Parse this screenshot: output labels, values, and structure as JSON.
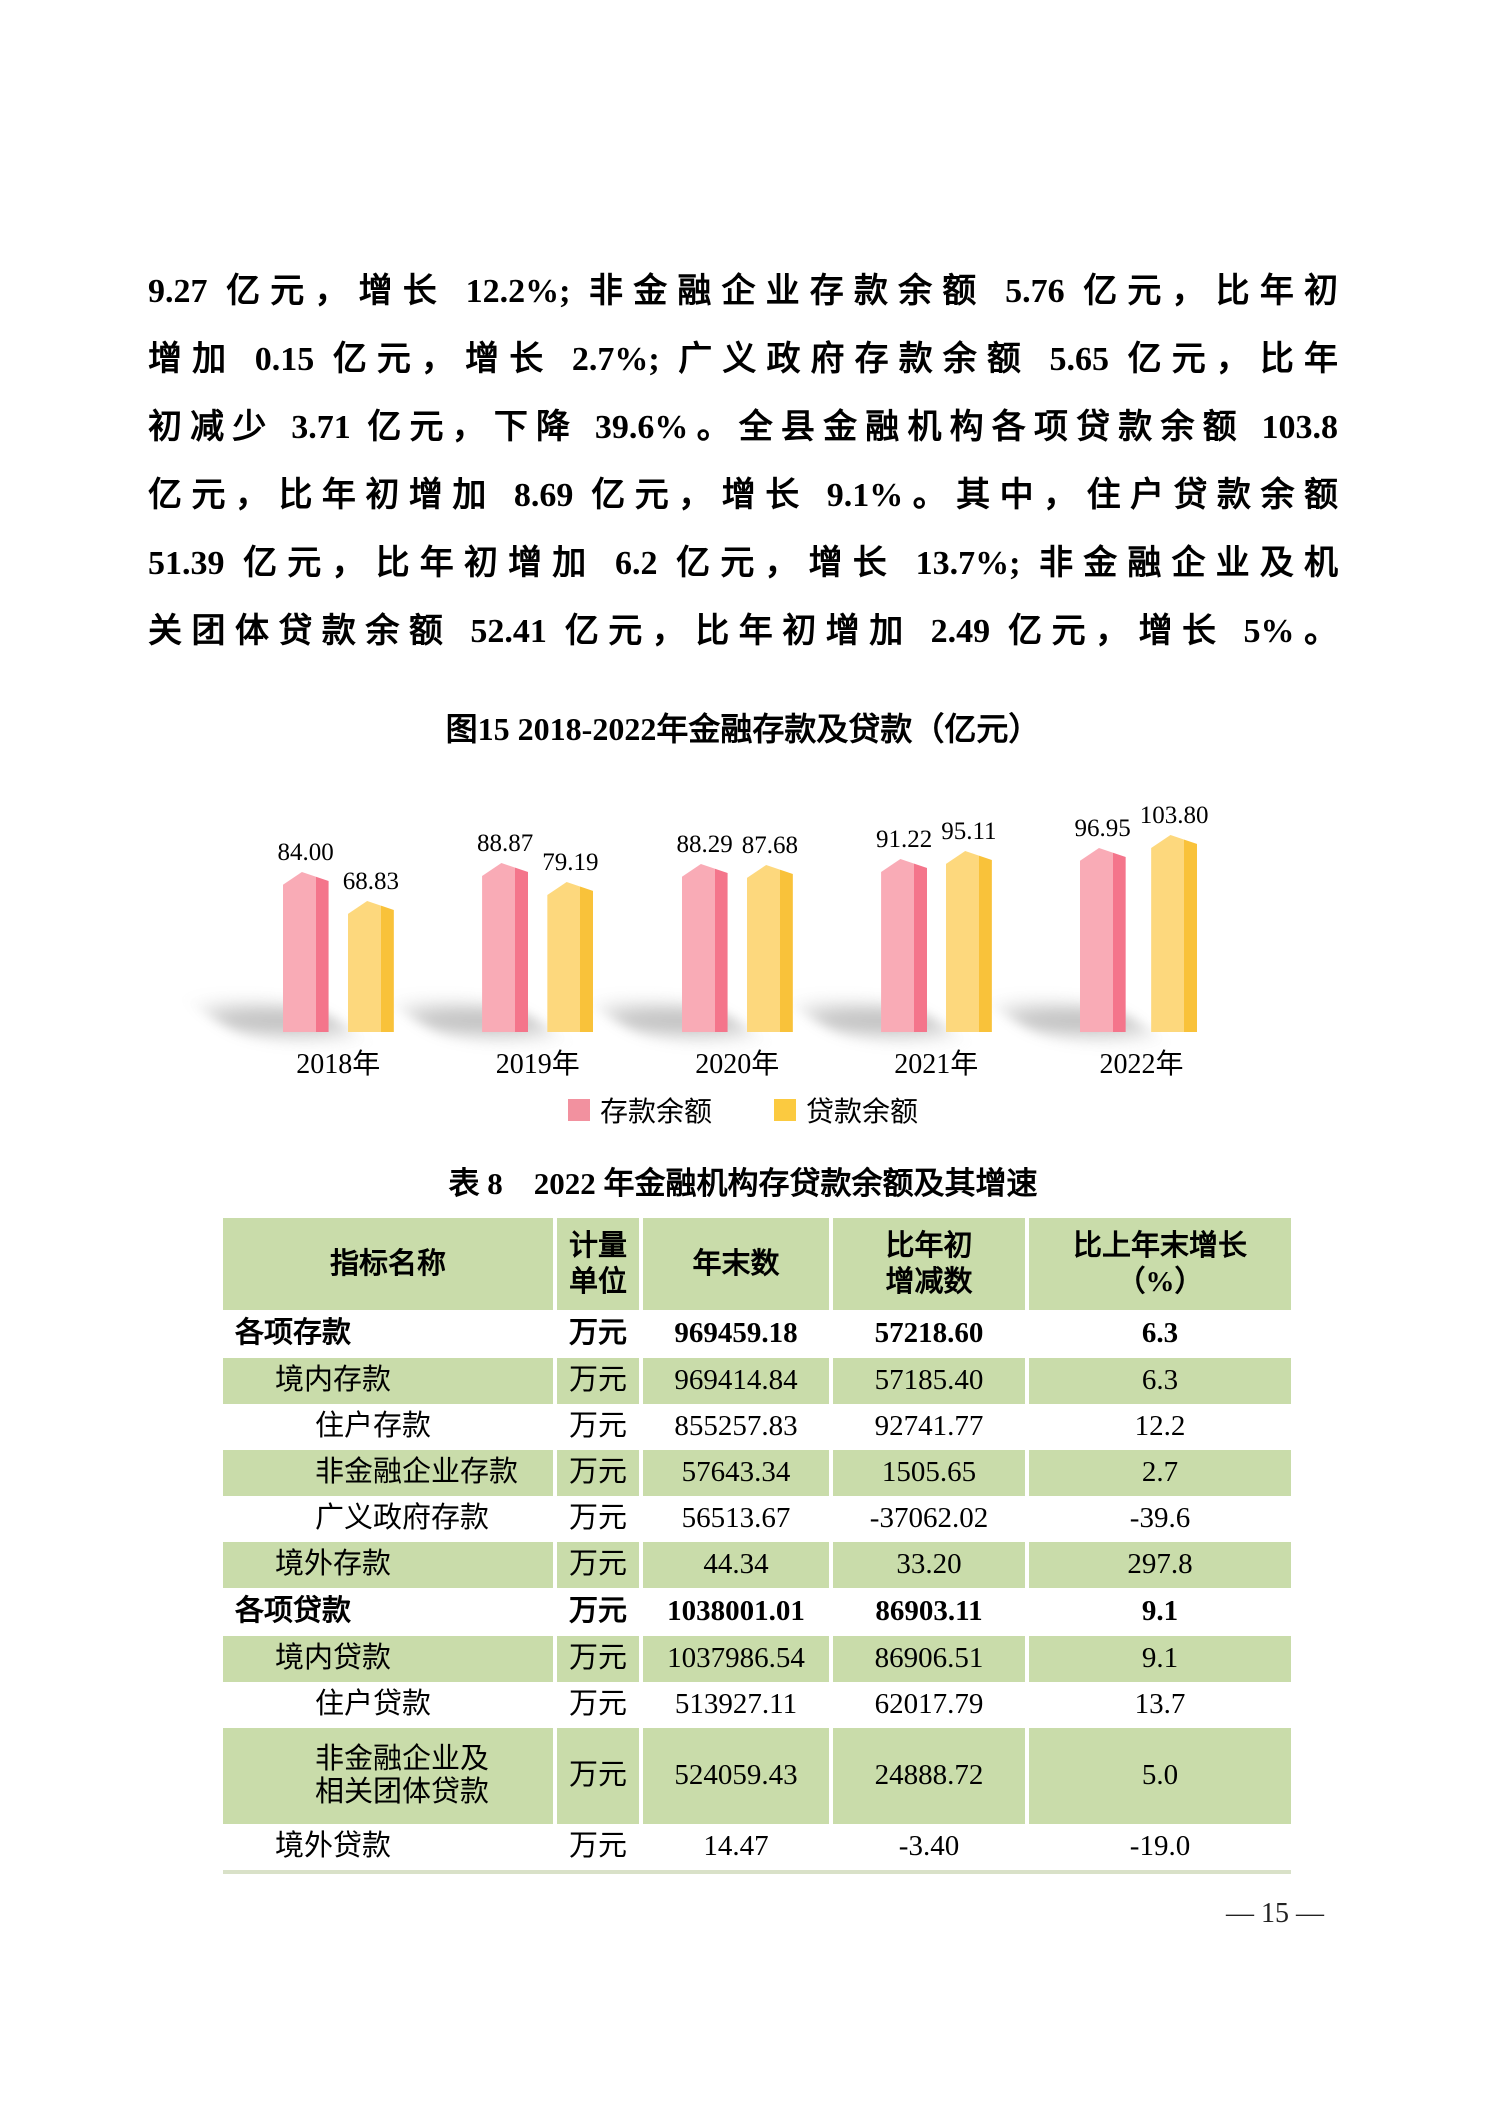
{
  "paragraph": {
    "lines": [
      "9.27 亿元，增长 12.2%; 非金融企业存款余额 5.76 亿元，比年初",
      "增加 0.15 亿元，增长 2.7%; 广义政府存款余额 5.65 亿元，比年",
      "初减少 3.71 亿元，下降 39.6%。全县金融机构各项贷款余额 103.8",
      "亿元，比年初增加 8.69 亿元，增长 9.1%。其中，住户贷款余额",
      "51.39 亿元，比年初增加 6.2 亿元，增长 13.7%; 非金融企业及机",
      "关团体贷款余额 52.41 亿元，比年初增加 2.49 亿元，增长 5%。"
    ]
  },
  "figure": {
    "title": "图15 2018-2022年金融存款及贷款（亿元）"
  },
  "chart_data": {
    "type": "bar",
    "title": "图15 2018-2022年金融存款及贷款（亿元）",
    "unit": "亿元",
    "categories": [
      "2018年",
      "2019年",
      "2020年",
      "2021年",
      "2022年"
    ],
    "series": [
      {
        "name": "存款余额",
        "values": [
          84.0,
          88.87,
          88.29,
          91.22,
          96.95
        ],
        "labels": [
          "84.00",
          "88.87",
          "88.29",
          "91.22",
          "96.95"
        ],
        "color_front": "#f9abb6",
        "color_side": "#f4758b",
        "legend_color": "#f2919f"
      },
      {
        "name": "贷款余额",
        "values": [
          68.83,
          79.19,
          87.68,
          95.11,
          103.8
        ],
        "labels": [
          "68.83",
          "79.19",
          "87.68",
          "95.11",
          "103.80"
        ],
        "color_front": "#fdd87d",
        "color_side": "#f9c23a",
        "legend_color": "#fbca40"
      }
    ],
    "ylim": [
      0,
      110
    ],
    "grid": false,
    "legend_position": "bottom"
  },
  "table": {
    "title": "表 8　2022 年金融机构存贷款余额及其增速",
    "header_bg": "#c9dcaa",
    "headers": [
      "指标名称",
      "计量\n单位",
      "年末数",
      "比年初\n增减数",
      "比上年末增长\n（%）"
    ],
    "rows": [
      {
        "name": "各项存款",
        "unit": "万元",
        "year_end": "969459.18",
        "change": "57218.60",
        "growth": "6.3",
        "bold": true,
        "indent": 0
      },
      {
        "name": "境内存款",
        "unit": "万元",
        "year_end": "969414.84",
        "change": "57185.40",
        "growth": "6.3",
        "bold": false,
        "indent": 1
      },
      {
        "name": "住户存款",
        "unit": "万元",
        "year_end": "855257.83",
        "change": "92741.77",
        "growth": "12.2",
        "bold": false,
        "indent": 2
      },
      {
        "name": "非金融企业存款",
        "unit": "万元",
        "year_end": "57643.34",
        "change": "1505.65",
        "growth": "2.7",
        "bold": false,
        "indent": 2
      },
      {
        "name": "广义政府存款",
        "unit": "万元",
        "year_end": "56513.67",
        "change": "-37062.02",
        "growth": "-39.6",
        "bold": false,
        "indent": 2
      },
      {
        "name": "境外存款",
        "unit": "万元",
        "year_end": "44.34",
        "change": "33.20",
        "growth": "297.8",
        "bold": false,
        "indent": 1
      },
      {
        "name": "各项贷款",
        "unit": "万元",
        "year_end": "1038001.01",
        "change": "86903.11",
        "growth": "9.1",
        "bold": true,
        "indent": 0
      },
      {
        "name": "境内贷款",
        "unit": "万元",
        "year_end": "1037986.54",
        "change": "86906.51",
        "growth": "9.1",
        "bold": false,
        "indent": 1
      },
      {
        "name": "住户贷款",
        "unit": "万元",
        "year_end": "513927.11",
        "change": "62017.79",
        "growth": "13.7",
        "bold": false,
        "indent": 2
      },
      {
        "name": "非金融企业及\n相关团体贷款",
        "unit": "万元",
        "year_end": "524059.43",
        "change": "24888.72",
        "growth": "5.0",
        "bold": false,
        "indent": 2
      },
      {
        "name": "境外贷款",
        "unit": "万元",
        "year_end": "14.47",
        "change": "-3.40",
        "growth": "-19.0",
        "bold": false,
        "indent": 1
      }
    ]
  },
  "footer": {
    "page_number": "— 15 —"
  }
}
